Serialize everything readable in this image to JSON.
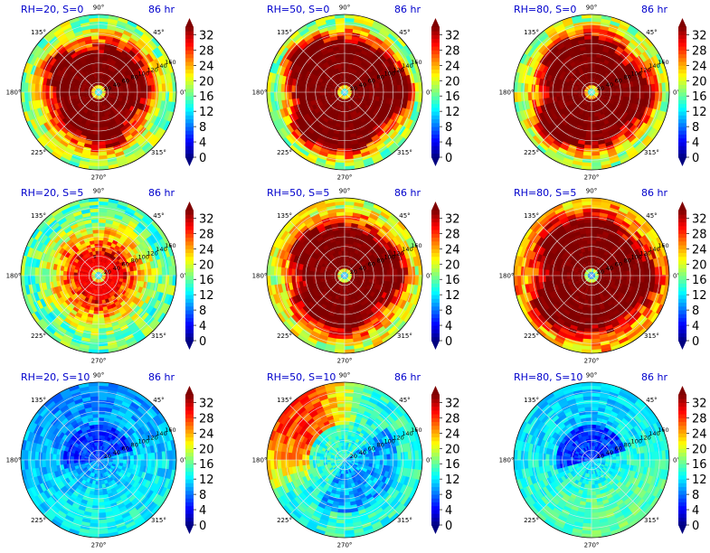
{
  "chart_data": {
    "type": "polar-colormap",
    "colormap": "jet",
    "colorbar": {
      "ticks": [
        "0",
        "4",
        "8",
        "12",
        "16",
        "20",
        "24",
        "28",
        "32"
      ],
      "min": 0,
      "max": 34,
      "extend": "both"
    },
    "angle_labels": [
      "0°",
      "45°",
      "90°",
      "135°",
      "180°",
      "225°",
      "270°",
      "315°"
    ],
    "radial_ticks": [
      "20",
      "40",
      "60",
      "80",
      "100",
      "120",
      "140",
      "160"
    ],
    "r_max": 160,
    "panels": [
      {
        "title": "RH=20, S=0",
        "time": "86 hr",
        "row": 0,
        "col": 0,
        "pattern": "ring",
        "core": 90,
        "value": 34,
        "center": 12,
        "rim": 18
      },
      {
        "title": "RH=50, S=0",
        "time": "86 hr",
        "row": 0,
        "col": 1,
        "pattern": "ring",
        "core": 110,
        "value": 34,
        "center": 12,
        "rim": 18
      },
      {
        "title": "RH=80, S=0",
        "time": "86 hr",
        "row": 0,
        "col": 2,
        "pattern": "ring",
        "core": 105,
        "value": 34,
        "center": 14,
        "rim": 19
      },
      {
        "title": "RH=20, S=5",
        "time": "86 hr",
        "row": 1,
        "col": 0,
        "pattern": "ring",
        "core": 45,
        "value": 30,
        "center": 12,
        "rim": 16
      },
      {
        "title": "RH=50, S=5",
        "time": "86 hr",
        "row": 1,
        "col": 1,
        "pattern": "ring",
        "core": 100,
        "value": 34,
        "center": 10,
        "rim": 20
      },
      {
        "title": "RH=80, S=5",
        "time": "86 hr",
        "row": 1,
        "col": 2,
        "pattern": "ring",
        "core": 110,
        "value": 34,
        "center": 8,
        "rim": 24
      },
      {
        "title": "RH=20, S=10",
        "time": "86 hr",
        "row": 2,
        "col": 0,
        "pattern": "low",
        "base": 9,
        "low": 6,
        "high": 13
      },
      {
        "title": "RH=50, S=10",
        "time": "86 hr",
        "row": 2,
        "col": 1,
        "pattern": "mixed",
        "base": 14,
        "low": 10,
        "high": 28
      },
      {
        "title": "RH=80, S=10",
        "time": "86 hr",
        "row": 2,
        "col": 2,
        "pattern": "low",
        "base": 11,
        "low": 6,
        "high": 16
      }
    ]
  }
}
